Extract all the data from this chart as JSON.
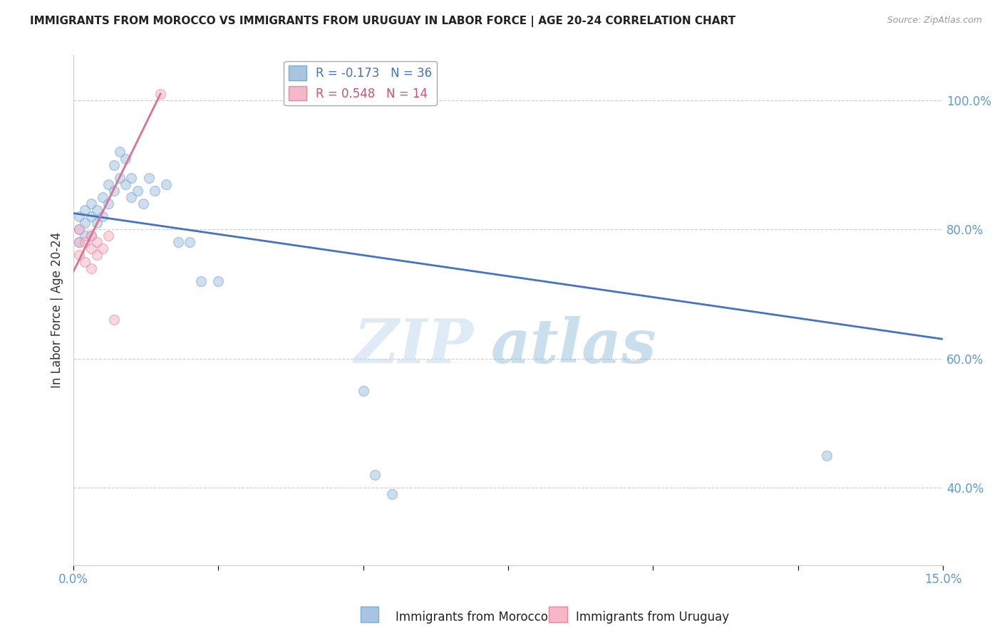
{
  "title": "IMMIGRANTS FROM MOROCCO VS IMMIGRANTS FROM URUGUAY IN LABOR FORCE | AGE 20-24 CORRELATION CHART",
  "source": "Source: ZipAtlas.com",
  "ylabel": "In Labor Force | Age 20-24",
  "xlim": [
    0.0,
    0.15
  ],
  "ylim": [
    0.28,
    1.07
  ],
  "xticks": [
    0.0,
    0.025,
    0.05,
    0.075,
    0.1,
    0.125,
    0.15
  ],
  "yticks_right": [
    0.4,
    0.6,
    0.8,
    1.0
  ],
  "ytick_right_labels": [
    "40.0%",
    "60.0%",
    "80.0%",
    "100.0%"
  ],
  "morocco_color": "#a8c4e0",
  "morocco_edge": "#7aadd4",
  "uruguay_color": "#f4b8c8",
  "uruguay_edge": "#e8889e",
  "morocco_line_color": "#4472c4",
  "uruguay_line_color": "#e07090",
  "morocco_R": -0.173,
  "morocco_N": 36,
  "uruguay_R": 0.548,
  "uruguay_N": 14,
  "watermark_zip": "ZIP",
  "watermark_atlas": "atlas",
  "morocco_scatter_x": [
    0.001,
    0.001,
    0.001,
    0.002,
    0.002,
    0.002,
    0.003,
    0.003,
    0.003,
    0.004,
    0.004,
    0.005,
    0.005,
    0.006,
    0.006,
    0.007,
    0.007,
    0.008,
    0.008,
    0.009,
    0.009,
    0.01,
    0.01,
    0.011,
    0.012,
    0.013,
    0.014,
    0.016,
    0.018,
    0.02,
    0.022,
    0.025,
    0.05,
    0.052,
    0.055,
    0.13
  ],
  "morocco_scatter_y": [
    0.82,
    0.8,
    0.78,
    0.83,
    0.81,
    0.79,
    0.84,
    0.82,
    0.79,
    0.83,
    0.81,
    0.85,
    0.82,
    0.87,
    0.84,
    0.9,
    0.86,
    0.92,
    0.88,
    0.91,
    0.87,
    0.88,
    0.85,
    0.86,
    0.84,
    0.88,
    0.86,
    0.87,
    0.78,
    0.78,
    0.72,
    0.72,
    0.55,
    0.42,
    0.39,
    0.45
  ],
  "uruguay_scatter_x": [
    0.001,
    0.001,
    0.001,
    0.002,
    0.002,
    0.003,
    0.003,
    0.003,
    0.004,
    0.004,
    0.005,
    0.006,
    0.007,
    0.015
  ],
  "uruguay_scatter_y": [
    0.76,
    0.78,
    0.8,
    0.75,
    0.78,
    0.77,
    0.79,
    0.74,
    0.76,
    0.78,
    0.77,
    0.79,
    0.66,
    1.01
  ],
  "morocco_trend_x": [
    0.0,
    0.15
  ],
  "morocco_trend_y": [
    0.825,
    0.63
  ],
  "uruguay_trend_x": [
    0.0,
    0.015
  ],
  "uruguay_trend_y": [
    0.735,
    1.01
  ],
  "background_color": "#ffffff",
  "grid_color": "#cccccc",
  "dot_size": 100,
  "dot_alpha": 0.55,
  "dot_linewidth": 1.0
}
